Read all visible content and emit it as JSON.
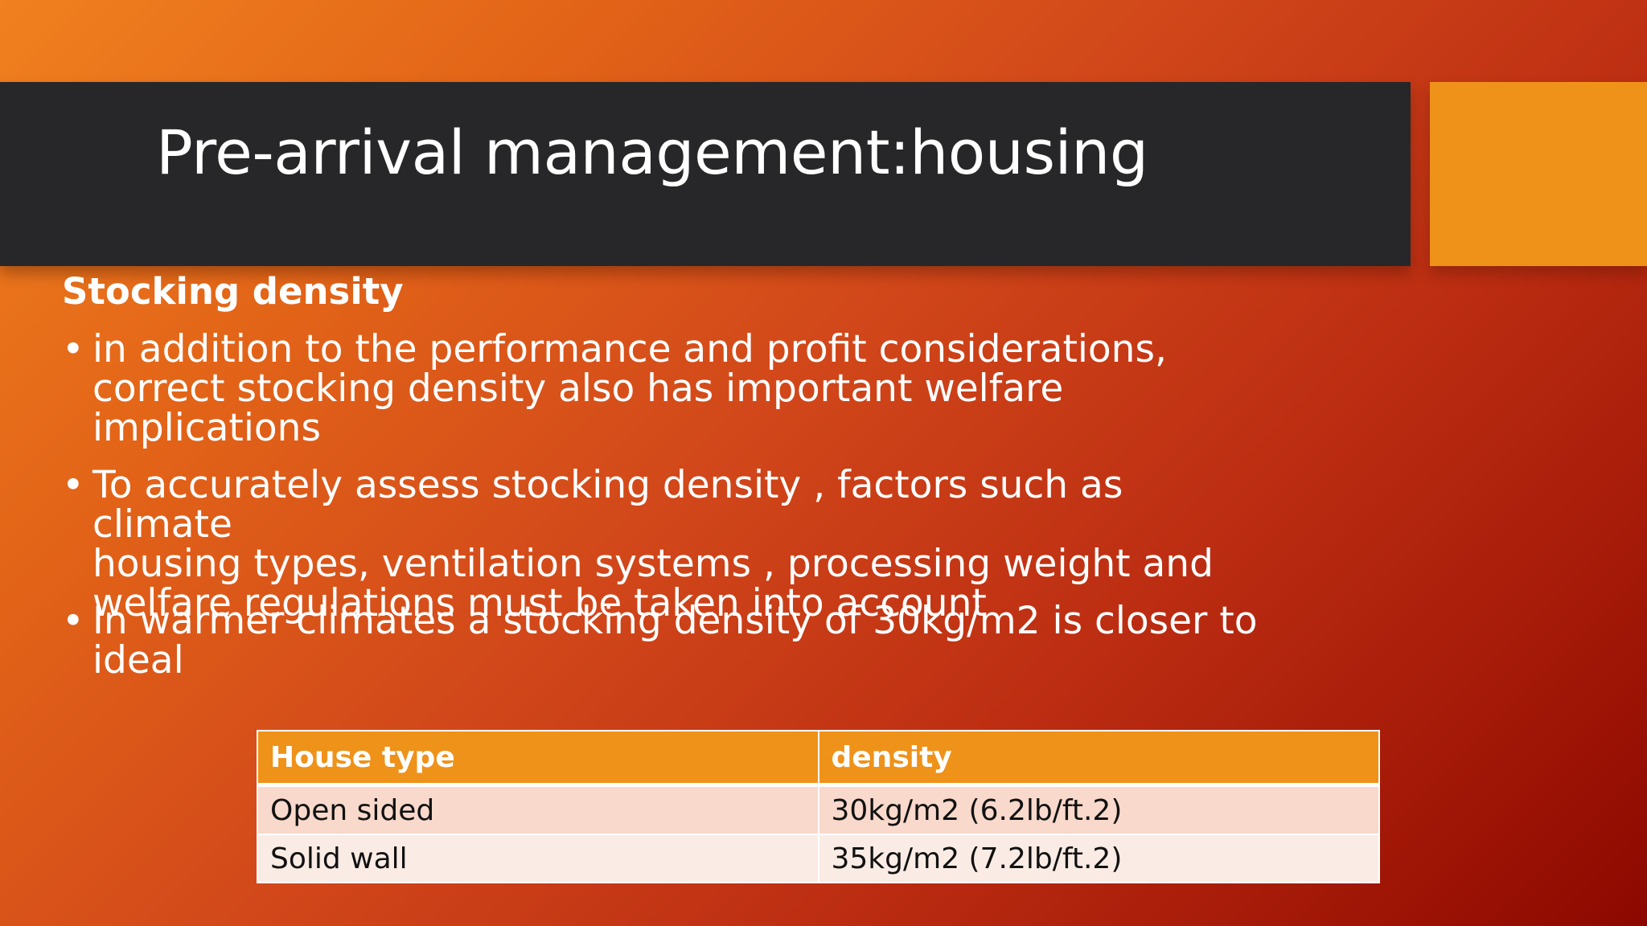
{
  "slide": {
    "title": "Pre-arrival management:housing",
    "subheading": "Stocking density",
    "bullets": [
      {
        "symbol": "•",
        "text": "in addition to the performance and profit considerations,\ncorrect stocking density also has important welfare\nimplications"
      },
      {
        "symbol": "•",
        "text": "To accurately assess stocking density , factors such as climate\nhousing types, ventilation systems , processing weight and\nwelfare regulations must be taken into account"
      },
      {
        "symbol": "•",
        "text": "In warmer climates a stocking density of 30kg/m2 is closer to\nideal"
      }
    ],
    "table": {
      "headers": [
        "House type",
        "density"
      ],
      "rows": [
        [
          "Open sided",
          "30kg/m2  (6.2lb/ft.2)"
        ],
        [
          "Solid wall",
          "35kg/m2 (7.2lb/ft.2)"
        ]
      ]
    }
  },
  "colors": {
    "title_bar": "#272729",
    "accent": "#ef9219",
    "background_light": "#f0811f",
    "background_dark": "#8c0800",
    "table_row_1": "#f8d9cb",
    "table_row_2": "#faece5"
  }
}
